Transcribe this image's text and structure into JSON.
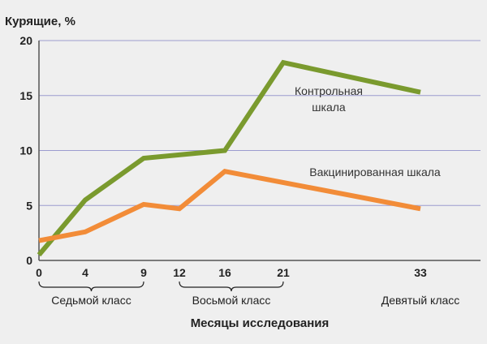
{
  "chart_data": {
    "type": "line",
    "ylabel": "Курящие, %",
    "xlabel": "Месяцы исследования",
    "ylim": [
      0,
      20
    ],
    "y_ticks": [
      0,
      5,
      10,
      15,
      20
    ],
    "x_ticks": [
      0,
      4,
      9,
      12,
      16,
      21,
      33
    ],
    "x_scale": "piecewise",
    "grid": "horizontal",
    "series": [
      {
        "name_lines": [
          "Контрольная",
          "шкала"
        ],
        "color": "#7a9a2e",
        "x": [
          0,
          4,
          9,
          16,
          21,
          33
        ],
        "values": [
          0.5,
          5.5,
          9.3,
          10.0,
          18.0,
          15.3
        ]
      },
      {
        "name_lines": [
          "Вакцинированная шкала"
        ],
        "color": "#f28c38",
        "x": [
          0,
          4,
          9,
          12,
          16,
          33
        ],
        "values": [
          1.8,
          2.6,
          5.1,
          4.7,
          8.1,
          4.7
        ]
      }
    ],
    "grade_groups": [
      {
        "label": "Седьмой класс",
        "from": 0,
        "to": 9,
        "bracket": true
      },
      {
        "label": "Восьмой класс",
        "from": 12,
        "to": 21,
        "bracket": true
      },
      {
        "label": "Девятый класс",
        "from": 33,
        "to": 33,
        "bracket": false
      }
    ]
  }
}
